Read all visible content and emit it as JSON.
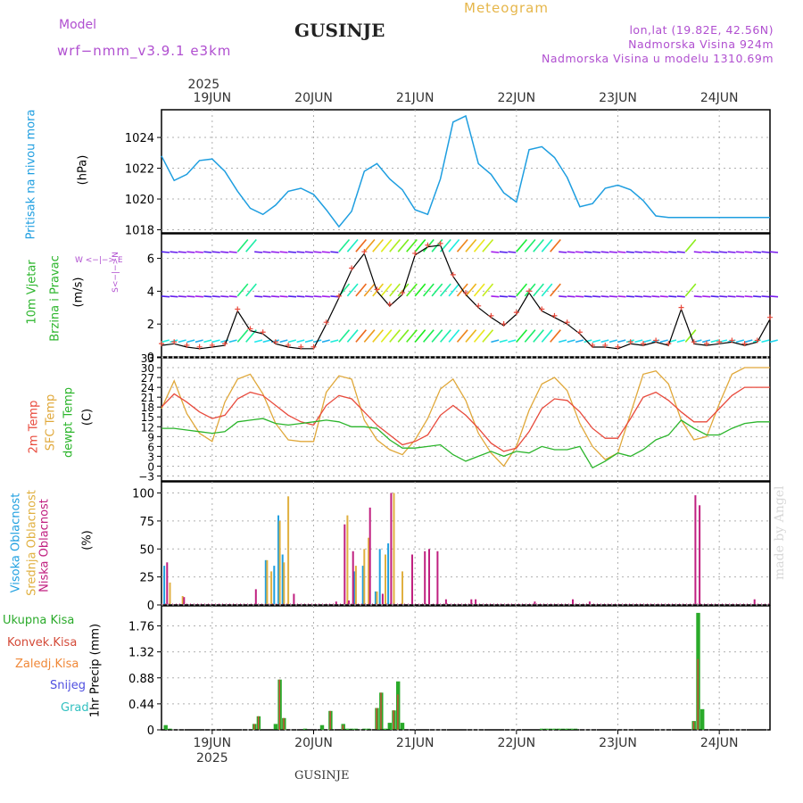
{
  "header": {
    "model_label": "Model",
    "model_name": "wrf−nmm_v3.9.1  e3km",
    "location": "GUSINJE",
    "meteogram": "Meteogram",
    "lonlat": "lon,lat (19.82E, 42.56N)",
    "elevation": "Nadmorska Visina 924m",
    "model_elevation": "Nadmorska Visina u modelu 1310.69m"
  },
  "footer": {
    "location": "GUSINJE",
    "made_by": "made by Angel"
  },
  "colors": {
    "pressure": "#1e9ee0",
    "temp2m": "#e84a3c",
    "sfc": "#e0a83a",
    "dewpt": "#2bb52b",
    "high_cloud": "#20a0e0",
    "mid_cloud": "#e0b040",
    "low_cloud": "#c02080",
    "total_precip": "#2aaa2a",
    "conv_precip": "#d44a38",
    "frozen": "#f08838",
    "snow": "#5050e0",
    "hail": "#30c0c0",
    "wind_speed": "#000000",
    "wind_marker": "#e84a3c"
  },
  "chart_data": [
    {
      "type": "line",
      "title": "Pritisak na nivou mora",
      "ylabel": "(hPa)",
      "ylim": [
        1017.8,
        1025.8
      ],
      "yticks": [
        "1018",
        "1020",
        "1022",
        "1024"
      ],
      "x": [
        0,
        3,
        6,
        9,
        12,
        15,
        18,
        21,
        24,
        27,
        30,
        33,
        36,
        39,
        42,
        45,
        48,
        51,
        54,
        57,
        60,
        63,
        66,
        69,
        72,
        75,
        78,
        81,
        84,
        87,
        90,
        93,
        96,
        99,
        102,
        105,
        108,
        111,
        114,
        117,
        120,
        123,
        126,
        129,
        132,
        135,
        138,
        141,
        144
      ],
      "series": [
        {
          "name": "Pritisak na nivou mora",
          "values": [
            1022.8,
            1021.2,
            1021.6,
            1022.5,
            1022.6,
            1021.8,
            1020.5,
            1019.4,
            1019.0,
            1019.6,
            1020.5,
            1020.7,
            1020.3,
            1019.3,
            1018.2,
            1019.2,
            1021.8,
            1022.3,
            1021.3,
            1020.6,
            1019.3,
            1019.0,
            1021.3,
            1025.0,
            1025.4,
            1022.3,
            1021.6,
            1020.4,
            1019.8,
            1023.2,
            1023.4,
            1022.7,
            1021.4,
            1019.5,
            1019.7,
            1020.7,
            1020.9,
            1020.6,
            1019.9,
            1018.9,
            1018.8,
            1018.8,
            1018.8,
            1018.8,
            1018.8,
            1018.8,
            1018.8,
            1018.8,
            1018.8
          ]
        }
      ]
    },
    {
      "type": "line",
      "title": "10m Vjetar Brzina i Pravac",
      "ylabel": "(m/s)",
      "ylim": [
        0,
        7.5
      ],
      "yticks": [
        "0",
        "2",
        "4",
        "6"
      ],
      "compass": "W  <−|−>  E",
      "compass_v": "S<−|−>N",
      "x": [
        0,
        3,
        6,
        9,
        12,
        15,
        18,
        21,
        24,
        27,
        30,
        33,
        36,
        39,
        42,
        45,
        48,
        51,
        54,
        57,
        60,
        63,
        66,
        69,
        72,
        75,
        78,
        81,
        84,
        87,
        90,
        93,
        96,
        99,
        102,
        105,
        108,
        111,
        114,
        117,
        120,
        123,
        126,
        129,
        132,
        135,
        138,
        141,
        144
      ],
      "series": [
        {
          "name": "Brzina",
          "values": [
            0.7,
            0.8,
            0.6,
            0.5,
            0.6,
            0.7,
            2.8,
            1.6,
            1.4,
            0.8,
            0.6,
            0.5,
            0.5,
            2.0,
            3.6,
            5.3,
            6.3,
            4.0,
            3.1,
            3.8,
            6.2,
            6.7,
            6.8,
            4.9,
            3.8,
            3.0,
            2.4,
            1.9,
            2.6,
            3.9,
            2.8,
            2.4,
            2.0,
            1.4,
            0.6,
            0.6,
            0.5,
            0.8,
            0.7,
            0.9,
            0.7,
            2.9,
            0.8,
            0.7,
            0.8,
            0.9,
            0.7,
            0.9,
            2.3
          ]
        }
      ]
    },
    {
      "type": "line",
      "title": "2m Temp / SFC Temp / dewpt Temp",
      "ylabel": "(C)",
      "ylim": [
        -4.5,
        33
      ],
      "yticks": [
        "−3",
        "0",
        "3",
        "6",
        "9",
        "12",
        "15",
        "18",
        "21",
        "24",
        "27",
        "30",
        "33"
      ],
      "x": [
        0,
        3,
        6,
        9,
        12,
        15,
        18,
        21,
        24,
        27,
        30,
        33,
        36,
        39,
        42,
        45,
        48,
        51,
        54,
        57,
        60,
        63,
        66,
        69,
        72,
        75,
        78,
        81,
        84,
        87,
        90,
        93,
        96,
        99,
        102,
        105,
        108,
        111,
        114,
        117,
        120,
        123,
        126,
        129,
        132,
        135,
        138,
        141,
        144
      ],
      "series": [
        {
          "name": "2m Temp",
          "values": [
            18,
            22,
            19.5,
            16.5,
            14.5,
            15.5,
            20.5,
            22.5,
            21.5,
            18.5,
            15.5,
            13.5,
            12.5,
            18.5,
            21.5,
            20.5,
            16.5,
            12.5,
            9.5,
            6.5,
            7.5,
            9.5,
            15.5,
            18.5,
            15.5,
            11.5,
            7,
            4.5,
            5.5,
            10.5,
            17.5,
            20.5,
            20,
            16.5,
            11.5,
            8.5,
            8.5,
            14.5,
            21,
            22.5,
            20,
            16.5,
            13.5,
            13.5,
            17.5,
            21.5,
            24,
            24,
            24
          ]
        },
        {
          "name": "SFC Temp",
          "values": [
            17.5,
            26,
            16,
            10,
            7.5,
            19.5,
            26.5,
            28,
            22,
            13,
            8,
            7.5,
            7.5,
            22.5,
            27.5,
            26.5,
            14,
            8,
            5,
            3.5,
            8,
            14.5,
            23.5,
            26.5,
            20,
            10,
            4,
            0,
            6,
            17,
            25,
            27,
            23,
            13,
            6,
            2,
            4,
            16,
            28,
            29,
            25,
            14,
            8,
            9,
            19,
            28,
            30,
            30,
            30
          ]
        },
        {
          "name": "dewpt Temp",
          "values": [
            11.5,
            11.5,
            11,
            10.5,
            10,
            10.5,
            13.5,
            14,
            14.5,
            13,
            12.5,
            13,
            13.5,
            14,
            13.5,
            12,
            12,
            11.5,
            8,
            5.5,
            5.5,
            6,
            6.5,
            3.5,
            1.5,
            3,
            4.5,
            3,
            4.5,
            4,
            6,
            5,
            5,
            6,
            -0.5,
            1.5,
            4,
            3,
            5,
            8,
            9.5,
            14,
            11.5,
            9.5,
            9.5,
            11.5,
            13,
            13.5,
            13.5
          ]
        }
      ]
    },
    {
      "type": "bar",
      "title": "Visoka Oblacnost / Srednja Oblacnost / Niska Oblacnost",
      "ylabel": "(%)",
      "ylim": [
        0,
        110
      ],
      "yticks": [
        "0",
        "25",
        "50",
        "75",
        "100"
      ],
      "x": [
        1,
        2,
        5,
        22,
        25,
        26,
        27,
        28,
        29,
        30,
        31,
        41,
        43,
        44,
        45,
        46,
        48,
        49,
        51,
        52,
        53,
        54,
        55,
        57,
        59,
        61,
        62,
        63,
        65,
        67,
        68,
        70,
        73,
        74,
        88,
        92,
        97,
        101,
        126,
        127,
        128,
        140
      ],
      "series": [
        {
          "name": "Visoka Oblacnost",
          "values": [
            35,
            0,
            0,
            0,
            40,
            0,
            35,
            80,
            45,
            0,
            0,
            0,
            0,
            0,
            0,
            30,
            35,
            0,
            12,
            50,
            0,
            55,
            0,
            0,
            0,
            0,
            0,
            0,
            0,
            0,
            0,
            0,
            0,
            0,
            0,
            0,
            0,
            0,
            0,
            0,
            0,
            0
          ]
        },
        {
          "name": "Srednja Oblacnost",
          "values": [
            0,
            20,
            8,
            0,
            40,
            30,
            0,
            75,
            38,
            97,
            0,
            0,
            0,
            80,
            0,
            35,
            50,
            60,
            12,
            0,
            45,
            0,
            100,
            30,
            0,
            0,
            0,
            0,
            0,
            0,
            0,
            0,
            0,
            0,
            0,
            0,
            0,
            0,
            0,
            0,
            0,
            0
          ]
        },
        {
          "name": "Niska Oblacnost",
          "values": [
            38,
            0,
            7,
            14,
            0,
            0,
            0,
            0,
            0,
            0,
            10,
            3,
            72,
            4,
            48,
            0,
            0,
            87,
            0,
            10,
            0,
            100,
            0,
            0,
            45,
            0,
            48,
            50,
            48,
            5,
            0,
            0,
            5,
            5,
            3,
            0,
            5,
            3,
            98,
            89,
            0,
            5
          ]
        }
      ]
    },
    {
      "type": "bar",
      "title": "1hr Precip",
      "ylabel": "1hr Precip (mm)",
      "ylim": [
        0,
        2.1
      ],
      "yticks": [
        "0",
        "0.44",
        "0.88",
        "1.32",
        "1.76"
      ],
      "legend": [
        "Ukupna Kisa",
        "Konvek.Kisa",
        "Zaledj.Kisa",
        "Snijeg",
        "Grad"
      ],
      "x": [
        1,
        2,
        22,
        23,
        27,
        28,
        29,
        34,
        38,
        40,
        43,
        44,
        45,
        46,
        48,
        49,
        51,
        52,
        53,
        54,
        55,
        56,
        57,
        90,
        91,
        92,
        93,
        94,
        95,
        96,
        97,
        98,
        126,
        127,
        128
      ],
      "series": [
        {
          "name": "Ukupna Kisa",
          "values": [
            0.08,
            0.02,
            0.1,
            0.23,
            0.1,
            0.85,
            0.2,
            0.02,
            0.08,
            0.32,
            0.1,
            0.02,
            0.02,
            0.02,
            0.02,
            0.02,
            0.37,
            0.63,
            0.02,
            0.12,
            0.33,
            0.82,
            0.12,
            0.02,
            0.02,
            0.02,
            0.02,
            0.02,
            0.02,
            0.02,
            0.02,
            0.02,
            0.15,
            1.98,
            0.35
          ]
        },
        {
          "name": "Konvek.Kisa",
          "values": [
            0,
            0,
            0.1,
            0.23,
            0,
            0.85,
            0.2,
            0,
            0,
            0.32,
            0.08,
            0,
            0,
            0,
            0,
            0,
            0.37,
            0.63,
            0,
            0,
            0.33,
            0.6,
            0,
            0,
            0,
            0,
            0,
            0,
            0,
            0,
            0,
            0,
            0.14,
            1.2,
            0
          ]
        }
      ]
    }
  ],
  "x_axis": {
    "year": "2025",
    "labels": [
      "19JUN",
      "20JUN",
      "21JUN",
      "22JUN",
      "23JUN",
      "24JUN"
    ],
    "hours_total": 144
  },
  "panel_labels": {
    "pressure": "Pritisak na nivou mora",
    "pressure_unit": "(hPa)",
    "wind1": "10m Vjetar",
    "wind2": "Brzina i Pravac",
    "wind_unit": "(m/s)",
    "t1": "2m Temp",
    "t2": "SFC Temp",
    "t3": "dewpt Temp",
    "t_unit": "(C)",
    "c1": "Visoka Oblacnost",
    "c2": "Srednja Oblacnost",
    "c3": "Niska Oblacnost",
    "c_unit": "(%)"
  }
}
